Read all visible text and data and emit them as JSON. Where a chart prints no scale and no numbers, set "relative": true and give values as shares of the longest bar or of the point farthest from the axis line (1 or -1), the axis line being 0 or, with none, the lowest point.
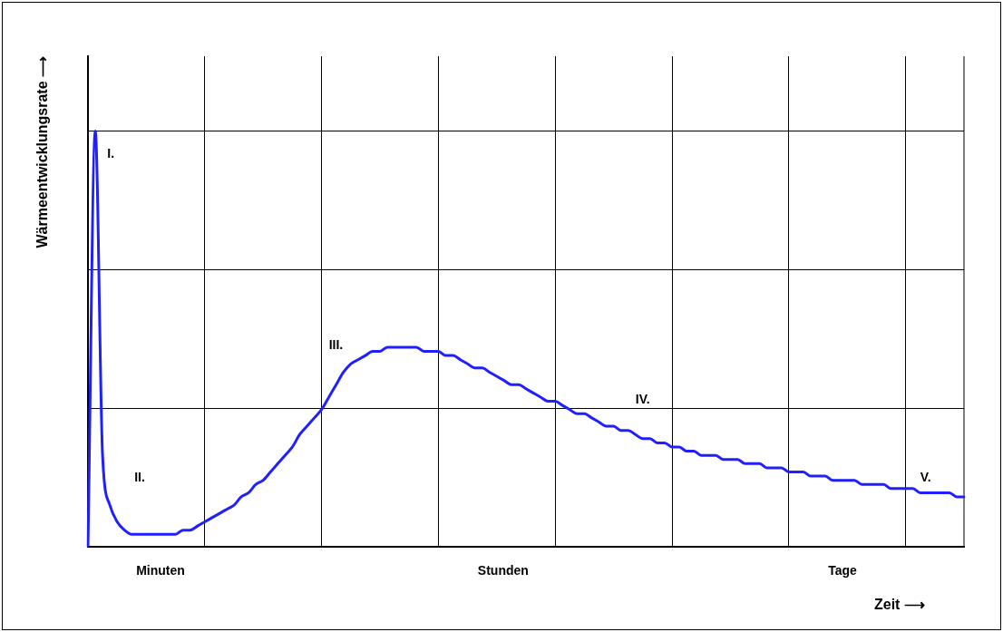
{
  "chart_data": {
    "type": "line",
    "relative": true,
    "xlabel": "Zeit ⟶",
    "ylabel": "Wärmeentwicklungsrate ⟶",
    "grid": true,
    "marker": "none",
    "line_style": "solid",
    "categories": [
      null,
      null,
      null,
      null,
      null,
      null,
      null,
      null,
      null,
      null,
      null,
      null,
      null,
      null,
      null,
      null,
      null,
      null,
      null,
      null,
      null,
      null,
      null,
      null,
      null,
      null,
      null,
      null,
      null,
      null,
      null,
      null,
      null,
      null,
      null,
      null,
      null,
      null,
      null,
      null,
      null,
      null,
      null,
      null,
      null,
      null,
      null,
      null,
      null,
      null,
      null,
      null,
      null,
      null,
      null,
      null,
      null,
      null,
      null,
      null,
      null,
      null,
      null,
      null,
      null,
      null,
      null,
      null,
      null,
      null,
      null,
      null,
      null,
      null,
      null,
      null,
      null,
      null,
      null,
      null,
      null,
      null,
      null,
      null,
      null,
      null,
      null,
      null,
      null,
      null,
      null,
      null,
      null,
      null,
      null,
      null,
      null,
      null,
      null,
      null,
      null,
      null,
      null,
      null,
      null,
      null,
      null,
      null,
      null,
      null,
      null,
      null,
      null,
      null,
      null,
      null,
      null,
      null,
      null,
      null,
      null
    ],
    "series": [
      {
        "color": "#1f1fff",
        "values": [
          0,
          1,
          0.22,
          0.1,
          0.06,
          0.04,
          0.03,
          0.03,
          0.03,
          0.03,
          0.03,
          0.03,
          0.03,
          0.04,
          0.04,
          0.05,
          0.06,
          0.07,
          0.08,
          0.09,
          0.1,
          0.12,
          0.13,
          0.15,
          0.16,
          0.18,
          0.2,
          0.22,
          0.24,
          0.27,
          0.29,
          0.31,
          0.33,
          0.36,
          0.39,
          0.42,
          0.44,
          0.45,
          0.46,
          0.47,
          0.47,
          0.48,
          0.48,
          0.48,
          0.48,
          0.48,
          0.47,
          0.47,
          0.47,
          0.46,
          0.46,
          0.45,
          0.44,
          0.43,
          0.43,
          0.42,
          0.41,
          0.4,
          0.39,
          0.39,
          0.38,
          0.37,
          0.36,
          0.35,
          0.35,
          0.34,
          0.33,
          0.32,
          0.32,
          0.31,
          0.3,
          0.29,
          0.29,
          0.28,
          0.28,
          0.27,
          0.26,
          0.26,
          0.25,
          0.25,
          0.24,
          0.24,
          0.23,
          0.23,
          0.22,
          0.22,
          0.22,
          0.21,
          0.21,
          0.21,
          0.2,
          0.2,
          0.2,
          0.19,
          0.19,
          0.19,
          0.18,
          0.18,
          0.18,
          0.17,
          0.17,
          0.17,
          0.16,
          0.16,
          0.16,
          0.16,
          0.15,
          0.15,
          0.15,
          0.15,
          0.14,
          0.14,
          0.14,
          0.14,
          0.13,
          0.13,
          0.13,
          0.13,
          0.13,
          0.12,
          0.12
        ]
      }
    ],
    "annotations": [
      "I.",
      "II.",
      "III.",
      "IV.",
      "V.",
      "Minuten",
      "Stunden",
      "Tage"
    ]
  }
}
